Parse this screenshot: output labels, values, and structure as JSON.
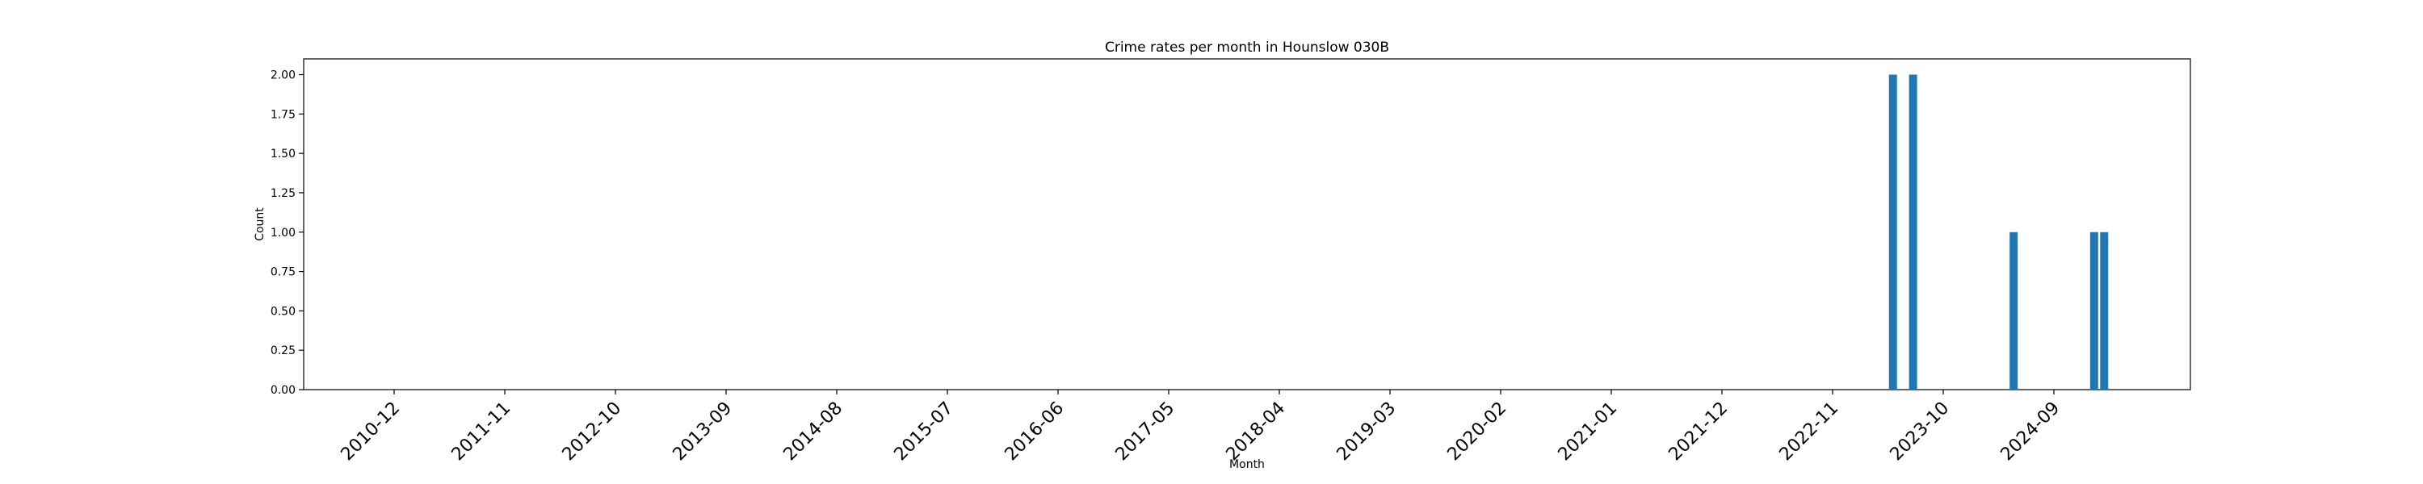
{
  "chart_data": {
    "type": "bar",
    "title": "Crime rates per month in Hounslow 030B",
    "xlabel": "Month",
    "ylabel": "Count",
    "ylim": [
      0,
      2.1
    ],
    "yticks": [
      "0.00",
      "0.25",
      "0.50",
      "0.75",
      "1.00",
      "1.25",
      "1.50",
      "1.75",
      "2.00"
    ],
    "xtick_labels": [
      "2010-12",
      "2011-11",
      "2012-10",
      "2013-09",
      "2014-08",
      "2015-07",
      "2016-06",
      "2017-05",
      "2018-04",
      "2019-03",
      "2020-02",
      "2021-01",
      "2021-12",
      "2022-11",
      "2023-10",
      "2024-09"
    ],
    "categories": [
      "2023-05",
      "2023-07",
      "2024-05",
      "2025-01",
      "2025-02"
    ],
    "values": [
      2,
      2,
      1,
      1,
      1
    ],
    "grid": false,
    "bar_color": "#1f77b4"
  }
}
